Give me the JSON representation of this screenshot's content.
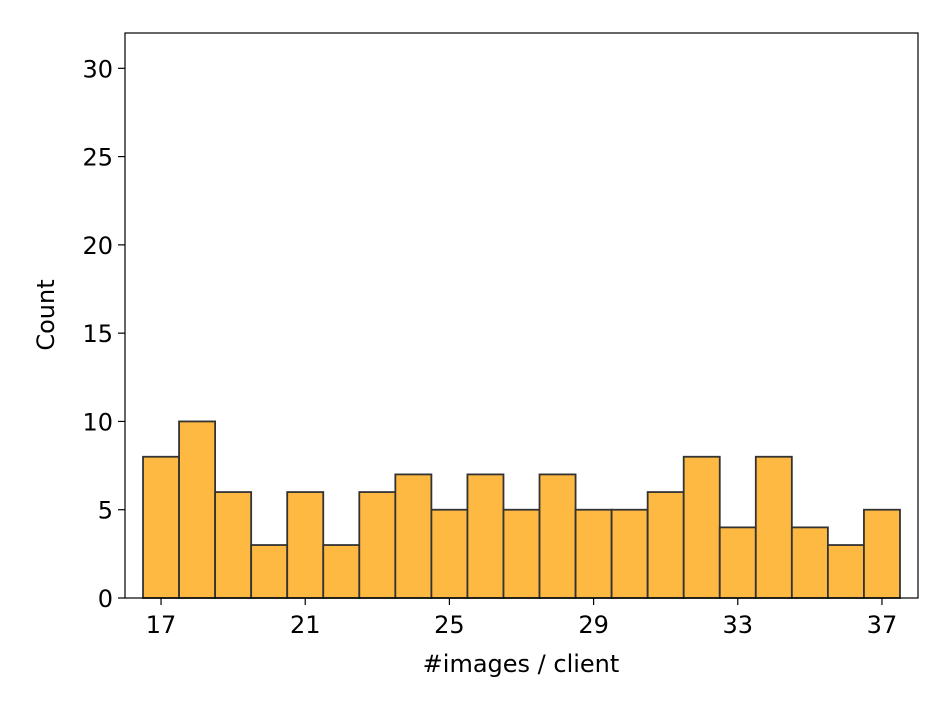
{
  "chart_data": {
    "type": "histogram",
    "bins": [
      16.5,
      17.5,
      18.5,
      19.5,
      20.5,
      21.5,
      22.5,
      23.5,
      24.5,
      25.5,
      26.5,
      27.5,
      28.5,
      29.5,
      30.5,
      31.5,
      32.5,
      33.5,
      34.5,
      35.5,
      36.5,
      37.5
    ],
    "values": [
      8,
      10,
      6,
      3,
      6,
      3,
      6,
      7,
      5,
      7,
      5,
      7,
      5,
      5,
      6,
      8,
      4,
      8,
      4,
      3,
      5
    ],
    "color": "#fdb942",
    "edgecolor": "#333333",
    "xlabel": "#images / client",
    "ylabel": "Count",
    "xlim": [
      16,
      38
    ],
    "xticks": [
      17,
      21,
      25,
      29,
      33,
      37
    ],
    "ylim": [
      0,
      32
    ],
    "yticks": [
      0,
      5,
      10,
      15,
      20,
      25,
      30
    ]
  }
}
